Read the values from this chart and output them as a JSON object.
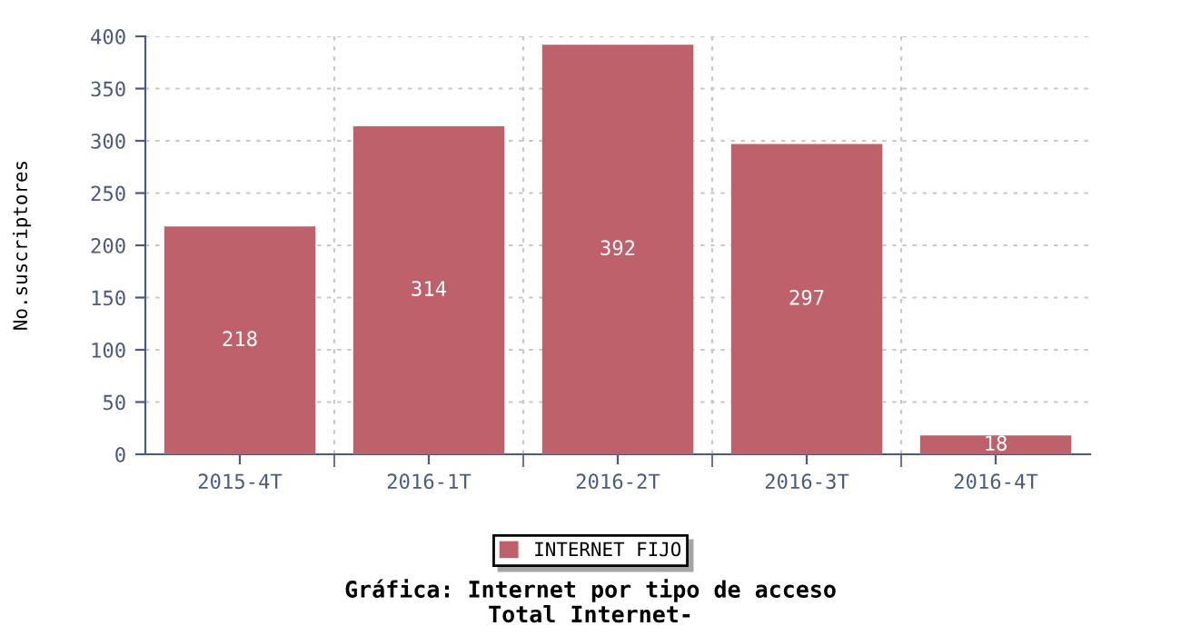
{
  "chart_data": {
    "type": "bar",
    "title": "Gráfica: Internet por tipo de acceso",
    "subtitle": "Total Internet-",
    "ylabel": "No.suscriptores",
    "categories": [
      "2015-4T",
      "2016-1T",
      "2016-2T",
      "2016-3T",
      "2016-4T"
    ],
    "series": [
      {
        "name": "INTERNET FIJO",
        "color": "#bf616a",
        "values": [
          218,
          314,
          392,
          297,
          18
        ]
      }
    ],
    "ylim": [
      0,
      400
    ],
    "yticks": [
      0,
      50,
      100,
      150,
      200,
      250,
      300,
      350,
      400
    ],
    "grid": true,
    "legend": "bottom",
    "data_labels": true
  }
}
